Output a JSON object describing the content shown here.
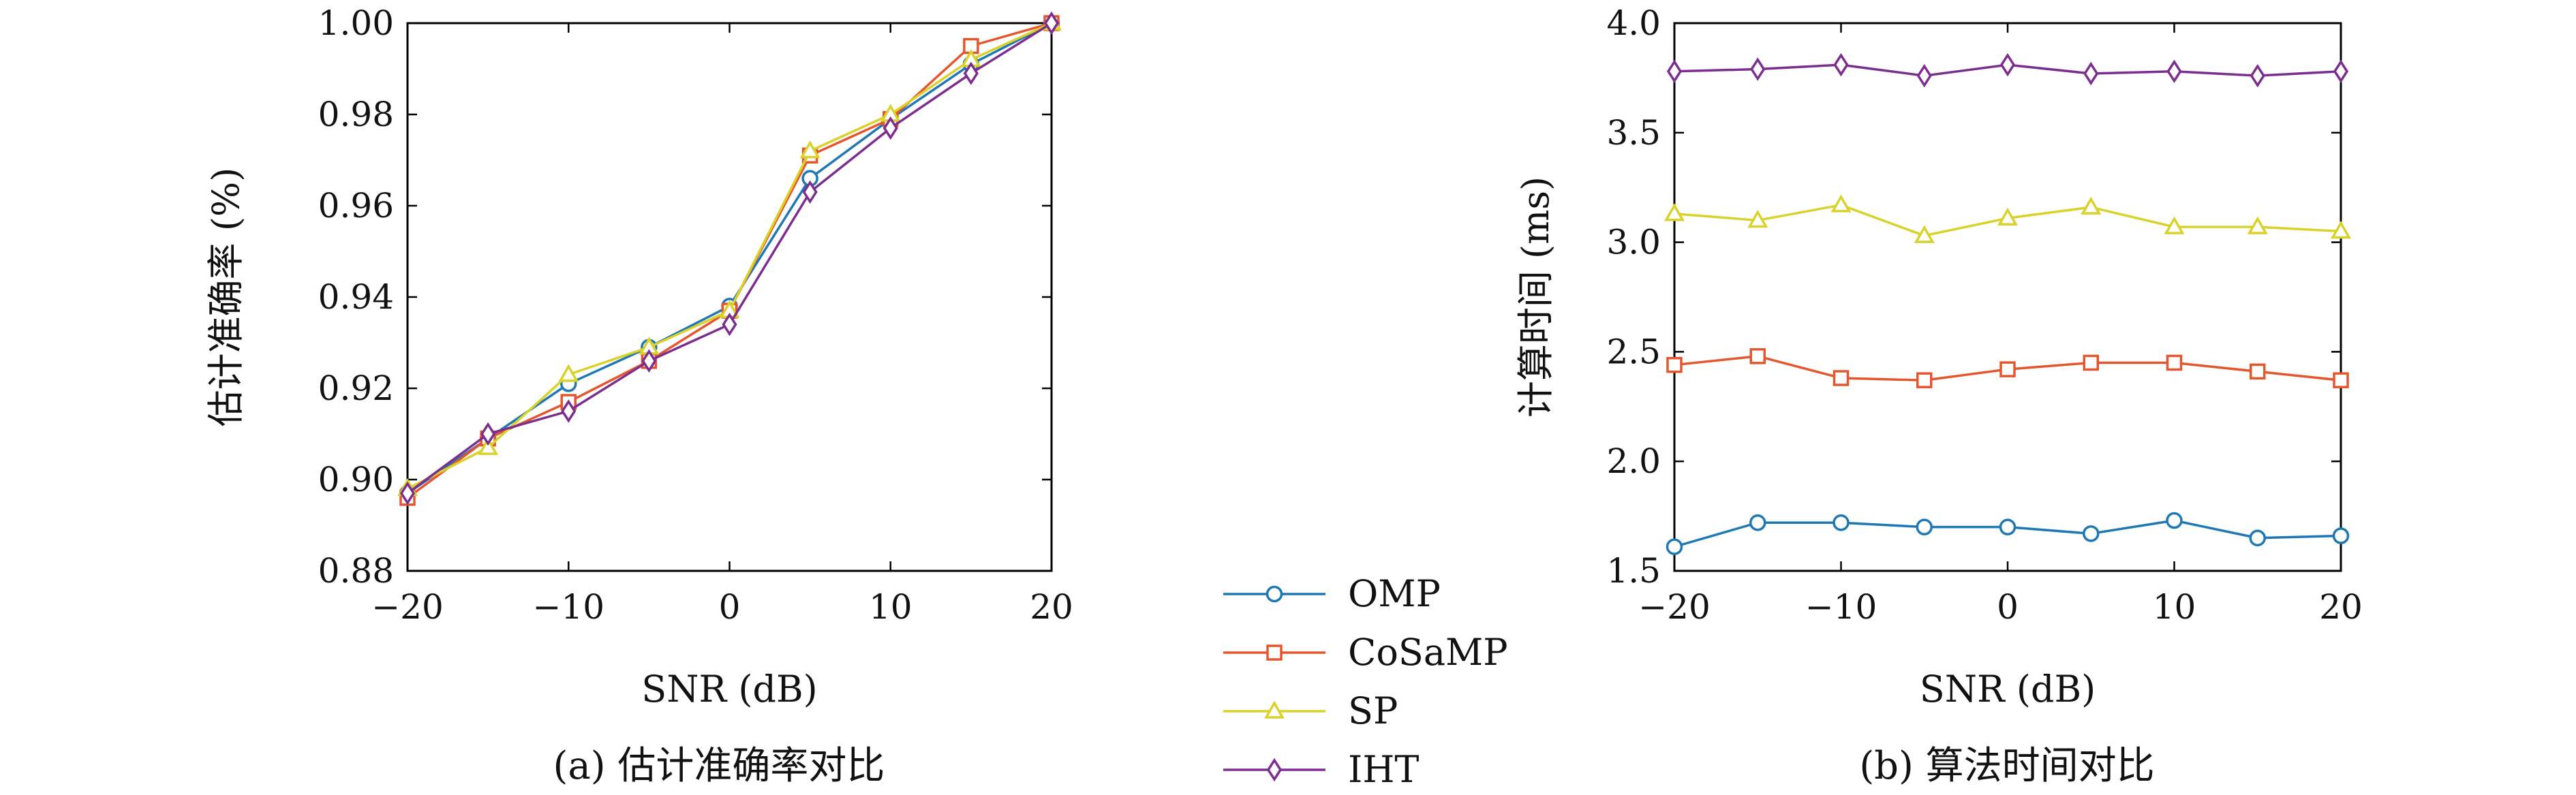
{
  "chart_data": [
    {
      "type": "line",
      "caption": "(a) 估计准确率对比",
      "xlabel": "SNR (dB)",
      "ylabel": "估计准确率 (%)",
      "xlim": [
        -20,
        20
      ],
      "ylim": [
        0.88,
        1.0
      ],
      "xticks": [
        -20,
        -10,
        0,
        10,
        20
      ],
      "xtick_labels": [
        "−20",
        "−10",
        "0",
        "10",
        "20"
      ],
      "yticks": [
        0.88,
        0.9,
        0.92,
        0.94,
        0.96,
        0.98,
        1.0
      ],
      "ytick_labels": [
        "0.88",
        "0.90",
        "0.92",
        "0.94",
        "0.96",
        "0.98",
        "1.00"
      ],
      "grid": false,
      "x": [
        -20,
        -15,
        -10,
        -5,
        0,
        5,
        10,
        15,
        20
      ],
      "series": [
        {
          "name": "OMP",
          "values": [
            0.897,
            0.909,
            0.921,
            0.929,
            0.938,
            0.966,
            0.979,
            0.991,
            1.0
          ]
        },
        {
          "name": "CoSaMP",
          "values": [
            0.896,
            0.909,
            0.917,
            0.926,
            0.937,
            0.971,
            0.979,
            0.995,
            1.0
          ]
        },
        {
          "name": "SP",
          "values": [
            0.898,
            0.907,
            0.923,
            0.929,
            0.937,
            0.972,
            0.98,
            0.992,
            1.0
          ]
        },
        {
          "name": "IHT",
          "values": [
            0.897,
            0.91,
            0.915,
            0.926,
            0.934,
            0.963,
            0.977,
            0.989,
            1.0
          ]
        }
      ]
    },
    {
      "type": "line",
      "caption": "(b) 算法时间对比",
      "xlabel": "SNR (dB)",
      "ylabel": "计算时间 (ms)",
      "xlim": [
        -20,
        20
      ],
      "ylim": [
        1.5,
        4.0
      ],
      "xticks": [
        -20,
        -10,
        0,
        10,
        20
      ],
      "xtick_labels": [
        "−20",
        "−10",
        "0",
        "10",
        "20"
      ],
      "yticks": [
        1.5,
        2.0,
        2.5,
        3.0,
        3.5,
        4.0
      ],
      "ytick_labels": [
        "1.5",
        "2.0",
        "2.5",
        "3.0",
        "3.5",
        "4.0"
      ],
      "grid": false,
      "x": [
        -20,
        -15,
        -10,
        -5,
        0,
        5,
        10,
        15,
        20
      ],
      "series": [
        {
          "name": "OMP",
          "values": [
            1.61,
            1.72,
            1.72,
            1.7,
            1.7,
            1.67,
            1.73,
            1.65,
            1.66
          ]
        },
        {
          "name": "CoSaMP",
          "values": [
            2.44,
            2.48,
            2.38,
            2.37,
            2.42,
            2.45,
            2.45,
            2.41,
            2.37
          ]
        },
        {
          "name": "SP",
          "values": [
            3.13,
            3.1,
            3.17,
            3.03,
            3.11,
            3.16,
            3.07,
            3.07,
            3.05
          ]
        },
        {
          "name": "IHT",
          "values": [
            3.78,
            3.79,
            3.81,
            3.76,
            3.81,
            3.77,
            3.78,
            3.76,
            3.78
          ]
        }
      ]
    }
  ],
  "legend": {
    "placement": "bottom-center",
    "entries": [
      "OMP",
      "CoSaMP",
      "SP",
      "IHT"
    ]
  },
  "styles": {
    "OMP": {
      "color": "#1f77b4",
      "marker": "circle"
    },
    "CoSaMP": {
      "color": "#e4572e",
      "marker": "square"
    },
    "SP": {
      "color": "#d9d22a",
      "marker": "triangle"
    },
    "IHT": {
      "color": "#7b2e8e",
      "marker": "diamond"
    }
  }
}
